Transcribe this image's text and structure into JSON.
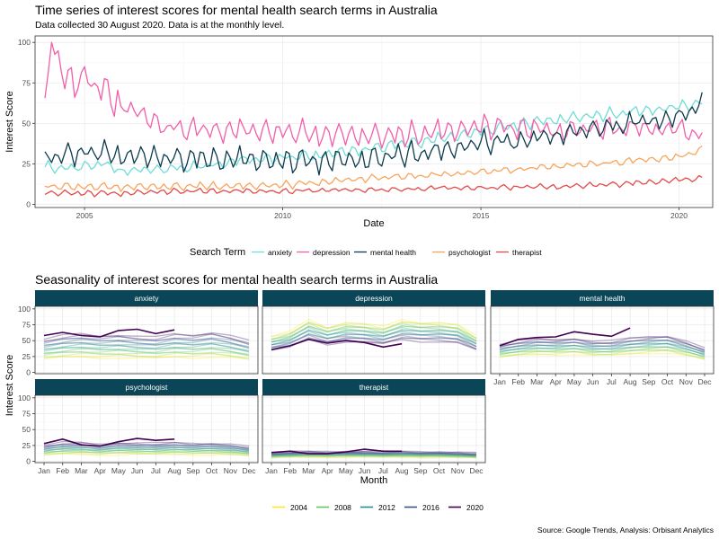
{
  "chart_data": [
    {
      "type": "line",
      "title": "Time series of interest scores for mental health search terms in Australia",
      "subtitle": "Data collected 30 August 2020. Data is at the monthly level.",
      "xlabel": "Date",
      "ylabel": "Interest Score",
      "x_ticks": [
        "2005",
        "2010",
        "2015",
        "2020"
      ],
      "y_ticks": [
        "0",
        "25",
        "50",
        "75",
        "100"
      ],
      "xlim": [
        "2003-10",
        "2020-11"
      ],
      "ylim": [
        -2,
        104
      ],
      "grid": true,
      "legend_position": "bottom",
      "legend_title": "Search Term",
      "series_note": "monthly values Jan 2004 - Aug 2020",
      "series": [
        {
          "name": "anxiety",
          "color": "#6fdcd6",
          "anchors": [
            [
              2004.0,
              23
            ],
            [
              2004.5,
              22
            ],
            [
              2005.0,
              24
            ],
            [
              2005.5,
              25
            ],
            [
              2006.0,
              21
            ],
            [
              2007.0,
              22
            ],
            [
              2008.0,
              23
            ],
            [
              2009.0,
              27
            ],
            [
              2010.0,
              29
            ],
            [
              2011.0,
              31
            ],
            [
              2012.0,
              34
            ],
            [
              2013.0,
              37
            ],
            [
              2014.0,
              40
            ],
            [
              2015.0,
              45
            ],
            [
              2016.0,
              50
            ],
            [
              2017.0,
              53
            ],
            [
              2018.0,
              55
            ],
            [
              2019.0,
              57
            ],
            [
              2020.0,
              60
            ],
            [
              2020.6,
              63
            ]
          ]
        },
        {
          "name": "depression",
          "color": "#f25ea9",
          "anchors": [
            [
              2004.0,
              58
            ],
            [
              2004.25,
              98
            ],
            [
              2004.5,
              75
            ],
            [
              2005.0,
              80
            ],
            [
              2005.5,
              70
            ],
            [
              2006.0,
              62
            ],
            [
              2006.5,
              55
            ],
            [
              2007.0,
              48
            ],
            [
              2008.0,
              45
            ],
            [
              2009.0,
              45
            ],
            [
              2010.0,
              45
            ],
            [
              2011.0,
              44
            ],
            [
              2012.0,
              43
            ],
            [
              2013.0,
              42
            ],
            [
              2014.0,
              44
            ],
            [
              2015.0,
              48
            ],
            [
              2016.0,
              48
            ],
            [
              2017.0,
              46
            ],
            [
              2018.0,
              47
            ],
            [
              2019.0,
              46
            ],
            [
              2020.0,
              46
            ],
            [
              2020.6,
              42
            ]
          ]
        },
        {
          "name": "mental health",
          "color": "#0d3b4f",
          "anchors": [
            [
              2004.0,
              28
            ],
            [
              2005.0,
              33
            ],
            [
              2006.0,
              31
            ],
            [
              2007.0,
              29
            ],
            [
              2008.0,
              27
            ],
            [
              2009.0,
              27
            ],
            [
              2010.0,
              27
            ],
            [
              2011.0,
              28
            ],
            [
              2012.0,
              28
            ],
            [
              2013.0,
              30
            ],
            [
              2014.0,
              32
            ],
            [
              2015.0,
              38
            ],
            [
              2016.0,
              40
            ],
            [
              2017.0,
              44
            ],
            [
              2018.0,
              47
            ],
            [
              2019.0,
              50
            ],
            [
              2020.0,
              53
            ],
            [
              2020.6,
              63
            ]
          ]
        },
        {
          "name": "psychologist",
          "color": "#f7a55c",
          "anchors": [
            [
              2004.0,
              11
            ],
            [
              2005.0,
              11
            ],
            [
              2006.0,
              11
            ],
            [
              2007.0,
              11
            ],
            [
              2008.0,
              11
            ],
            [
              2009.0,
              11
            ],
            [
              2010.0,
              12
            ],
            [
              2011.0,
              14
            ],
            [
              2012.0,
              16
            ],
            [
              2013.0,
              17
            ],
            [
              2014.0,
              18
            ],
            [
              2015.0,
              20
            ],
            [
              2016.0,
              22
            ],
            [
              2017.0,
              24
            ],
            [
              2018.0,
              25
            ],
            [
              2019.0,
              27
            ],
            [
              2020.0,
              29
            ],
            [
              2020.6,
              34
            ]
          ]
        },
        {
          "name": "therapist",
          "color": "#e34a4a",
          "anchors": [
            [
              2004.0,
              7
            ],
            [
              2005.0,
              7
            ],
            [
              2006.0,
              7
            ],
            [
              2007.0,
              8
            ],
            [
              2008.0,
              8
            ],
            [
              2009.0,
              8
            ],
            [
              2010.0,
              8
            ],
            [
              2011.0,
              9
            ],
            [
              2012.0,
              9
            ],
            [
              2013.0,
              9
            ],
            [
              2014.0,
              10
            ],
            [
              2015.0,
              10
            ],
            [
              2016.0,
              11
            ],
            [
              2017.0,
              11
            ],
            [
              2018.0,
              12
            ],
            [
              2019.0,
              13
            ],
            [
              2020.0,
              15
            ],
            [
              2020.6,
              16
            ]
          ]
        }
      ]
    },
    {
      "type": "line",
      "title": "Seasonality of interest scores for mental health search terms in Australia",
      "xlabel": "Month",
      "ylabel": "Interest Score",
      "categories": [
        "Jan",
        "Feb",
        "Mar",
        "Apr",
        "May",
        "Jun",
        "Jul",
        "Aug",
        "Sep",
        "Oct",
        "Nov",
        "Dec"
      ],
      "y_ticks": [
        "0",
        "25",
        "50",
        "75",
        "100"
      ],
      "ylim": [
        -2,
        104
      ],
      "grid": true,
      "legend_position": "bottom",
      "years": [
        2004,
        2005,
        2006,
        2007,
        2008,
        2009,
        2010,
        2011,
        2012,
        2013,
        2014,
        2015,
        2016,
        2017,
        2018,
        2019,
        2020
      ],
      "legend_years": [
        "2004",
        "2008",
        "2012",
        "2016",
        "2020"
      ],
      "facets": [
        {
          "name": "anxiety",
          "start": 23,
          "end": 60,
          "profile": [
            0.9,
            1.0,
            1.05,
            1.0,
            1.03,
            0.98,
            0.95,
            1.05,
            1.02,
            1.1,
            1.0,
            0.85
          ],
          "y2020": [
            58,
            63,
            58,
            56,
            66,
            68,
            61,
            67
          ]
        },
        {
          "name": "depression",
          "start": 75,
          "end": 45,
          "profile": [
            0.75,
            0.85,
            1.1,
            0.95,
            1.05,
            1.02,
            0.95,
            1.1,
            1.05,
            1.05,
            1.0,
            0.75
          ],
          "y2020": [
            36,
            42,
            52,
            46,
            50,
            47,
            40,
            45
          ]
        },
        {
          "name": "mental health",
          "start": 28,
          "end": 53,
          "profile": [
            0.85,
            0.95,
            1.02,
            1.0,
            1.05,
            0.95,
            0.95,
            1.05,
            1.1,
            1.12,
            0.95,
            0.72
          ],
          "y2020": [
            42,
            52,
            55,
            56,
            64,
            60,
            57,
            70
          ]
        },
        {
          "name": "psychologist",
          "start": 11,
          "end": 29,
          "profile": [
            0.9,
            1.05,
            1.05,
            0.95,
            1.05,
            1.02,
            1.0,
            1.05,
            1.0,
            1.02,
            0.95,
            0.8
          ],
          "y2020": [
            28,
            35,
            26,
            24,
            31,
            36,
            33,
            35
          ]
        },
        {
          "name": "therapist",
          "start": 7,
          "end": 15,
          "profile": [
            0.9,
            1.0,
            1.05,
            1.0,
            1.05,
            1.05,
            1.0,
            1.05,
            1.0,
            1.0,
            0.95,
            0.85
          ],
          "y2020": [
            14,
            16,
            12,
            12,
            15,
            19,
            16,
            16
          ]
        }
      ]
    }
  ],
  "caption": "Source: Google Trends, Analysis: Orbisant Analytics"
}
